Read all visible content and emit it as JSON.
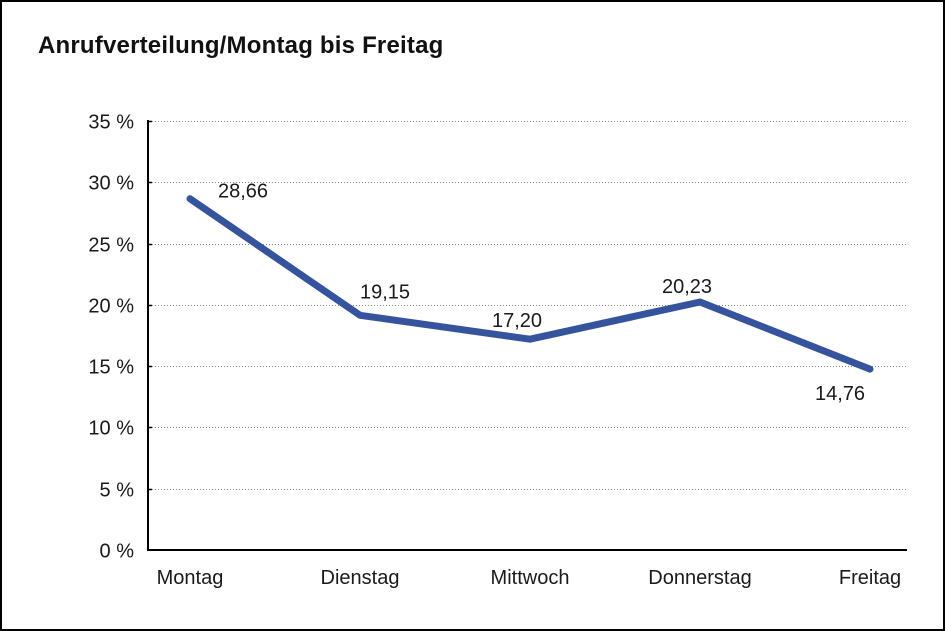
{
  "window": {
    "title": "Anrufverteilung/Montag bis Freitag"
  },
  "colors": {
    "line": "#35549D",
    "text": "#1a1a1a",
    "grid": "#808080",
    "axis": "#000000",
    "background": "#ffffff",
    "border": "#000000"
  },
  "chart_data": {
    "type": "line",
    "title": "Anrufverteilung/Montag bis Freitag",
    "categories": [
      "Montag",
      "Dienstag",
      "Mittwoch",
      "Donnerstag",
      "Freitag"
    ],
    "series": [
      {
        "name": "Anrufverteilung",
        "values": [
          28.66,
          19.15,
          17.2,
          20.23,
          14.76
        ]
      }
    ],
    "point_labels": [
      "28,66",
      "19,15",
      "17,20",
      "20,23",
      "14,76"
    ],
    "xlabel": "",
    "ylabel": "",
    "ylim": [
      0,
      35
    ],
    "y_tick_values": [
      35,
      30,
      25,
      20,
      15,
      10,
      5,
      0
    ],
    "y_ticks": [
      "35 %",
      "30 %",
      "25 %",
      "20 %",
      "15 %",
      "10 %",
      "5 %",
      "0 %"
    ],
    "grid": "horizontal-dotted",
    "legend": "none",
    "line_color": "#35549D"
  }
}
